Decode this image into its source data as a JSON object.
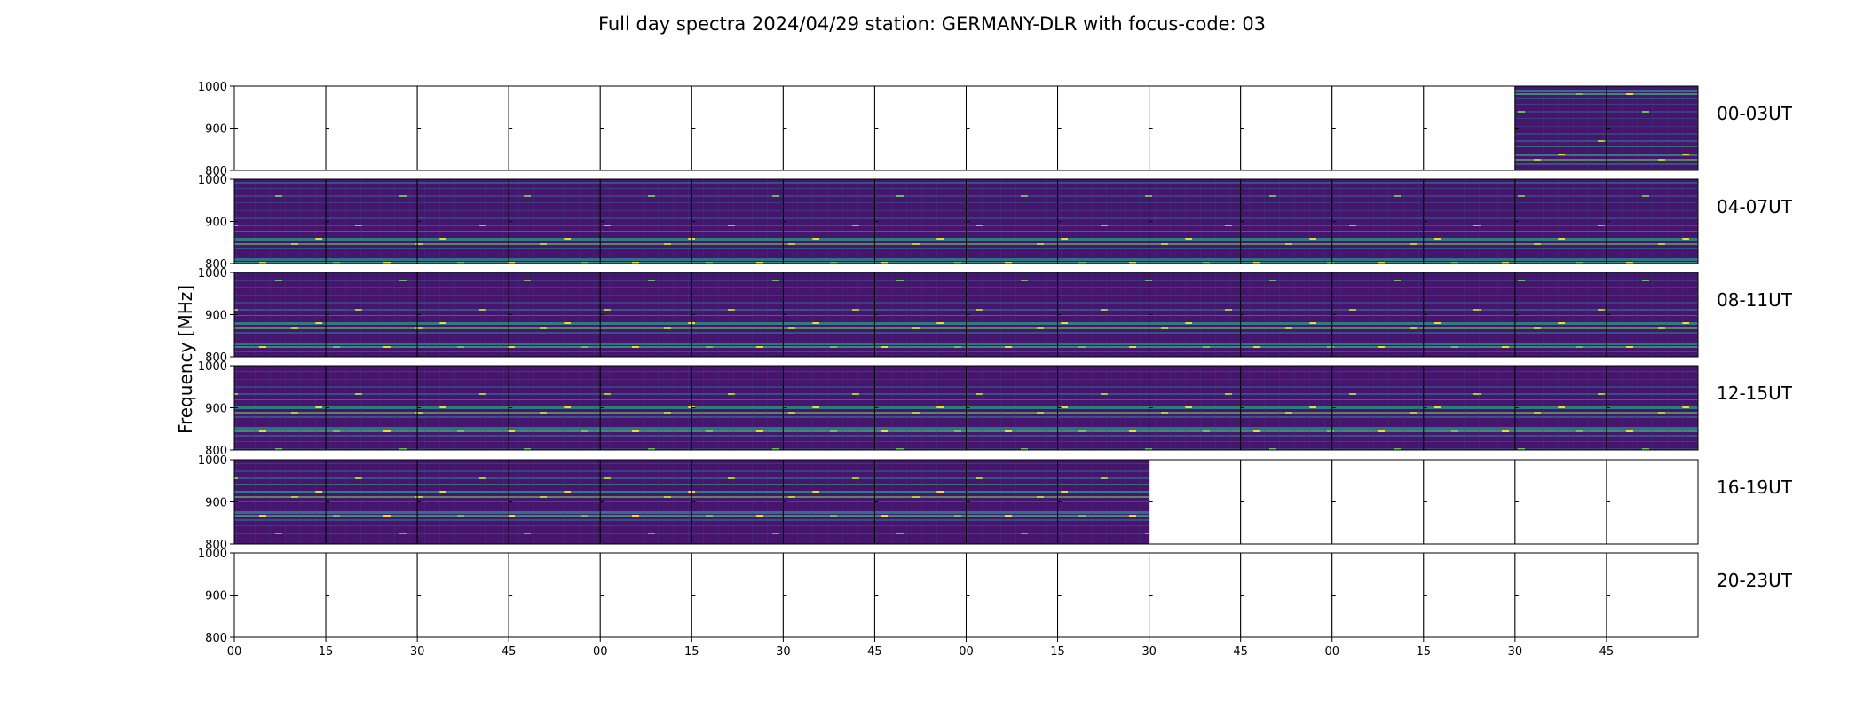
{
  "chart_data": {
    "type": "heatmap",
    "title": "Full day spectra 2024/04/29 station: GERMANY-DLR with focus-code: 03",
    "ylabel": "Frequency [MHz]",
    "xlabel": "",
    "ylim": [
      800,
      1000
    ],
    "yticks": [
      800,
      900,
      1000
    ],
    "xtick_labels": [
      "00",
      "15",
      "30",
      "45",
      "00",
      "15",
      "30",
      "45",
      "00",
      "15",
      "30",
      "45",
      "00",
      "15",
      "30",
      "45"
    ],
    "colormap": "viridis",
    "colors": {
      "low": "#440154",
      "mid": "#21908c",
      "high": "#fde725"
    },
    "panels_per_row": 16,
    "rows": [
      {
        "label": "00-03UT",
        "filled_from": 14,
        "filled_to": 16
      },
      {
        "label": "04-07UT",
        "filled_from": 0,
        "filled_to": 16
      },
      {
        "label": "08-11UT",
        "filled_from": 0,
        "filled_to": 16
      },
      {
        "label": "12-15UT",
        "filled_from": 0,
        "filled_to": 16
      },
      {
        "label": "16-19UT",
        "filled_from": 0,
        "filled_to": 10
      },
      {
        "label": "20-23UT",
        "filled_from": 0,
        "filled_to": 0
      }
    ]
  }
}
